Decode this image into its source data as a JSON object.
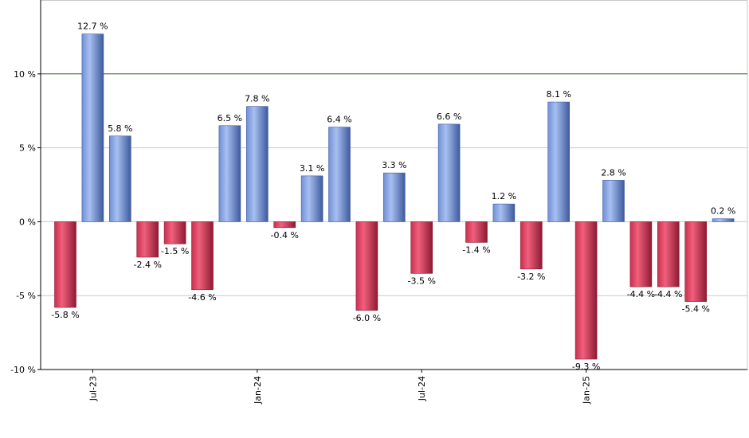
{
  "chart_data": {
    "type": "bar",
    "title": "",
    "xlabel": "",
    "ylabel": "",
    "ylim": [
      -10,
      15
    ],
    "yticks": [
      -10,
      -5,
      0,
      5,
      10
    ],
    "ytick_labels": [
      "-10 %",
      "-5 %",
      "0 %",
      "5 %",
      "10 %"
    ],
    "reference_line": 10,
    "grid": true,
    "legend": "none",
    "x_tick_labels": [
      {
        "label": "Jul-23",
        "index": 1
      },
      {
        "label": "Jan-24",
        "index": 7
      },
      {
        "label": "Jul-24",
        "index": 13
      },
      {
        "label": "Jan-25",
        "index": 19
      }
    ],
    "values": [
      -5.8,
      12.7,
      5.8,
      -2.4,
      -1.5,
      -4.6,
      6.5,
      7.8,
      -0.4,
      3.1,
      6.4,
      -6.0,
      3.3,
      -3.5,
      6.6,
      -1.4,
      1.2,
      -3.2,
      8.1,
      -9.3,
      2.8,
      -4.4,
      -4.4,
      -5.4,
      0.2
    ],
    "labels": [
      "-5.8 %",
      "12.7 %",
      "5.8 %",
      "-2.4 %",
      "-1.5 %",
      "-4.6 %",
      "6.5 %",
      "7.8 %",
      "-0.4 %",
      "3.1 %",
      "6.4 %",
      "-6.0 %",
      "3.3 %",
      "-3.5 %",
      "6.6 %",
      "-1.4 %",
      "1.2 %",
      "-3.2 %",
      "8.1 %",
      "-9.3 %",
      "2.8 %",
      "-4.4 %",
      "-4.4 %",
      "-5.4 %",
      "0.2 %"
    ],
    "colors": {
      "positive": "#7b9be0",
      "positive_dark": "#3e5a9e",
      "negative": "#d8405f",
      "negative_dark": "#8e1a32",
      "reference": "#2e6b2e",
      "grid": "#c8c8c8",
      "axis": "#000000"
    }
  }
}
